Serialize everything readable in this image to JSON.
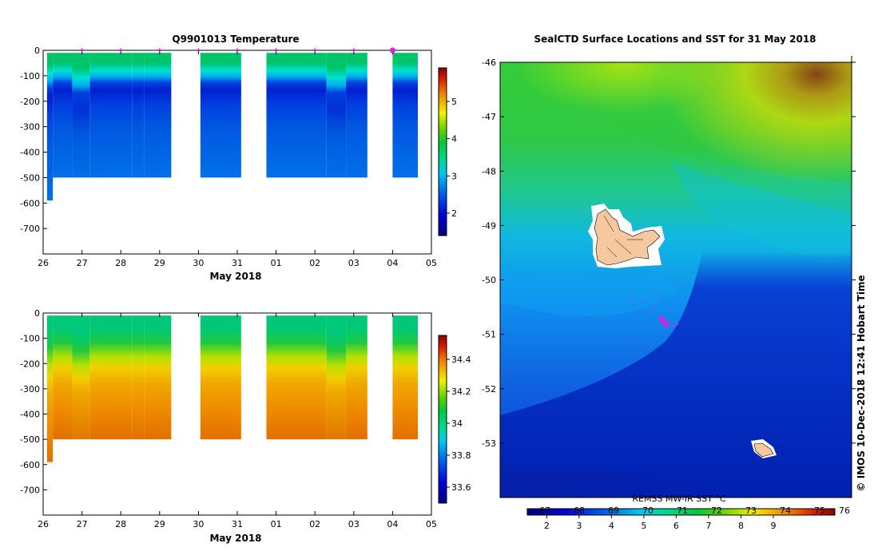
{
  "chart_data": [
    {
      "type": "heatmap",
      "title": "Q9901013  Temperature",
      "xlabel": "May 2018",
      "ylabel": "",
      "x_ticks": [
        "26",
        "27",
        "28",
        "29",
        "30",
        "31",
        "01",
        "02",
        "03",
        "04",
        "05"
      ],
      "y_ticks": [
        "0",
        "-100",
        "-200",
        "-300",
        "-400",
        "-500",
        "-600",
        "-700"
      ],
      "ylim": [
        -800,
        0
      ],
      "colorbar_ticks": [
        "2",
        "3",
        "4",
        "5"
      ],
      "colorbar_range": [
        1.4,
        5.9
      ],
      "profile_markers": [
        27,
        28,
        29,
        30,
        31,
        32,
        33,
        34,
        35
      ],
      "latest_marker": 35,
      "profiles": [
        {
          "start": 26.1,
          "end": 26.25,
          "depth": -590
        },
        {
          "start": 26.25,
          "end": 26.75,
          "depth": -500
        },
        {
          "start": 26.75,
          "end": 27.2,
          "depth": -500
        },
        {
          "start": 27.2,
          "end": 28.3,
          "depth": -500
        },
        {
          "start": 28.3,
          "end": 28.6,
          "depth": -500
        },
        {
          "start": 28.6,
          "end": 29.3,
          "depth": -500
        },
        {
          "start": 30.05,
          "end": 31.1,
          "depth": -500
        },
        {
          "start": 31.75,
          "end": 33.3,
          "depth": -500
        },
        {
          "start": 33.3,
          "end": 33.8,
          "depth": -500
        },
        {
          "start": 33.8,
          "end": 34.35,
          "depth": -500
        },
        {
          "start": 35.0,
          "end": 35.65,
          "depth": -500
        }
      ]
    },
    {
      "type": "heatmap",
      "title": "",
      "xlabel": "May 2018",
      "ylabel": "",
      "x_ticks": [
        "26",
        "27",
        "28",
        "29",
        "30",
        "31",
        "01",
        "02",
        "03",
        "04",
        "05"
      ],
      "y_ticks": [
        "0",
        "-100",
        "-200",
        "-300",
        "-400",
        "-500",
        "-600",
        "-700"
      ],
      "ylim": [
        -800,
        0
      ],
      "colorbar_ticks": [
        "33.6",
        "33.8",
        "34",
        "34.2",
        "34.4"
      ],
      "colorbar_range": [
        33.5,
        34.55
      ]
    },
    {
      "type": "heatmap",
      "title": "SealCTD Surface Locations and SST for 31 May 2018",
      "xlabel": "",
      "ylabel": "",
      "y_ticks": [
        "-46",
        "-47",
        "-48",
        "-49",
        "-50",
        "-51",
        "-52",
        "-53"
      ],
      "lat_range": [
        -54,
        -46
      ],
      "colorbar_label": "REMSS MW-IR SST °C",
      "colorbar_top_ticks": [
        "67",
        "68",
        "69",
        "70",
        "71",
        "72",
        "73",
        "74",
        "75",
        "76"
      ],
      "colorbar_bottom_ticks": [
        "2",
        "3",
        "4",
        "5",
        "6",
        "7",
        "8",
        "9"
      ],
      "colorbar_range": [
        1.4,
        10.9
      ],
      "credit": "© IMOS 10-Dec-2018 12:41 Hobart Time"
    }
  ]
}
